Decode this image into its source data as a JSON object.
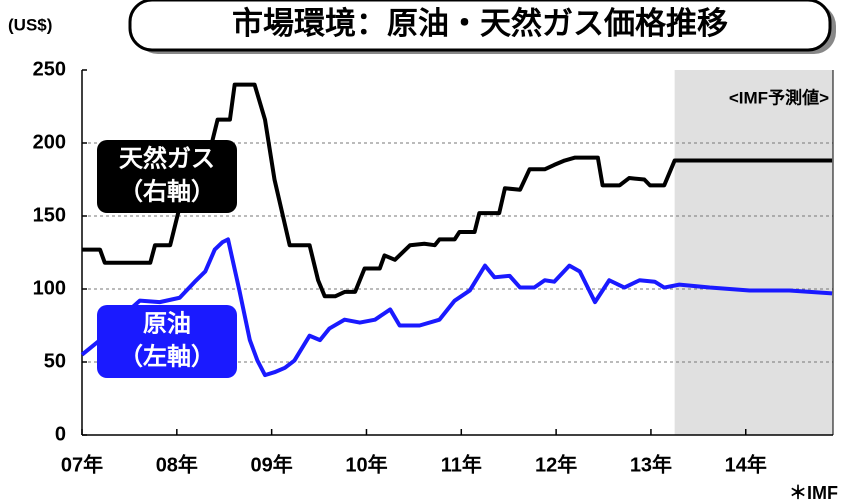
{
  "chart_data": {
    "type": "line",
    "title": "市場環境：原油・天然ガス価格推移",
    "y_unit": "(US$)",
    "footnote": "＊IMF",
    "xlim": [
      2007,
      2014.92
    ],
    "xticks": [
      {
        "value": 2007,
        "label": "07年"
      },
      {
        "value": 2008,
        "label": "08年"
      },
      {
        "value": 2009,
        "label": "09年"
      },
      {
        "value": 2010,
        "label": "10年"
      },
      {
        "value": 2011,
        "label": "11年"
      },
      {
        "value": 2012,
        "label": "12年"
      },
      {
        "value": 2013,
        "label": "13年"
      },
      {
        "value": 2014,
        "label": "14年"
      }
    ],
    "ylim": [
      0,
      250
    ],
    "yticks": [
      0,
      50,
      100,
      150,
      200,
      250
    ],
    "grid": true,
    "forecast_region": {
      "label": "<IMF予測値>",
      "x": [
        2013.25,
        2014.92
      ],
      "color": "#e0e0e0"
    },
    "series": [
      {
        "name": "天然ガス",
        "axis_label": "（右軸）",
        "color": "#000000",
        "x": [
          2007.0,
          2007.19,
          2007.24,
          2007.72,
          2007.77,
          2007.93,
          2008.01,
          2008.06,
          2008.16,
          2008.24,
          2008.35,
          2008.43,
          2008.56,
          2008.61,
          2008.82,
          2008.93,
          2009.03,
          2009.19,
          2009.4,
          2009.49,
          2009.56,
          2009.67,
          2009.77,
          2009.88,
          2009.98,
          2010.14,
          2010.19,
          2010.3,
          2010.46,
          2010.61,
          2010.72,
          2010.77,
          2010.93,
          2010.98,
          2011.14,
          2011.19,
          2011.4,
          2011.46,
          2011.62,
          2011.72,
          2011.88,
          2011.98,
          2012.09,
          2012.2,
          2012.44,
          2012.49,
          2012.67,
          2012.77,
          2012.93,
          2012.99,
          2013.14,
          2013.25,
          2014.91
        ],
        "values": [
          127,
          127,
          118,
          118,
          130,
          130,
          151,
          164,
          168,
          185,
          195,
          216,
          216,
          240,
          240,
          216,
          175,
          130,
          130,
          106,
          95,
          95,
          98,
          98,
          114,
          114,
          123,
          120,
          130,
          131,
          130,
          134,
          134,
          139,
          139,
          152,
          152,
          169,
          168,
          182,
          182,
          185,
          188,
          190,
          190,
          171,
          171,
          176,
          175,
          171,
          171,
          188,
          188
        ]
      },
      {
        "name": "原油",
        "axis_label": "（左軸）",
        "color": "#1a1aff",
        "x": [
          2007.0,
          2007.19,
          2007.4,
          2007.61,
          2007.82,
          2008.03,
          2008.19,
          2008.3,
          2008.4,
          2008.48,
          2008.54,
          2008.66,
          2008.77,
          2008.85,
          2008.93,
          2009.03,
          2009.14,
          2009.24,
          2009.4,
          2009.51,
          2009.61,
          2009.77,
          2009.93,
          2010.09,
          2010.25,
          2010.35,
          2010.56,
          2010.77,
          2010.93,
          2011.09,
          2011.25,
          2011.35,
          2011.51,
          2011.62,
          2011.77,
          2011.88,
          2011.98,
          2012.14,
          2012.25,
          2012.41,
          2012.56,
          2012.72,
          2012.88,
          2013.04,
          2013.14,
          2013.3,
          2013.62,
          2014.04,
          2014.46,
          2014.91
        ],
        "values": [
          55,
          65,
          80,
          92,
          91,
          94,
          105,
          112,
          127,
          132,
          134,
          99,
          65,
          51,
          41,
          43,
          46,
          51,
          68,
          65,
          73,
          79,
          77,
          79,
          86,
          75,
          75,
          79,
          92,
          99,
          116,
          108,
          109,
          101,
          101,
          106,
          105,
          116,
          112,
          91,
          106,
          101,
          106,
          105,
          101,
          103,
          101,
          99,
          99,
          97
        ]
      }
    ]
  }
}
